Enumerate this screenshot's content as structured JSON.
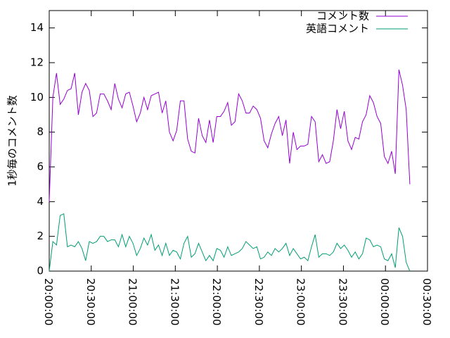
{
  "chart_data": {
    "type": "line",
    "y_label": "1秒毎のコメント数",
    "x": [
      0,
      2.6,
      5.2,
      7.8,
      10.4,
      13,
      15.6,
      18.2,
      20.8,
      23.4,
      26,
      28.6,
      31.2,
      33.8,
      36.4,
      39,
      41.6,
      44.2,
      46.8,
      49.4,
      52,
      54.6,
      57.2,
      59.8,
      62.4,
      65,
      67.6,
      70.2,
      72.8,
      75.4,
      78,
      80.6,
      83.2,
      85.8,
      88.4,
      91,
      93.6,
      96.2,
      98.8,
      101.4,
      104,
      106.6,
      109.2,
      111.8,
      114.4,
      117,
      119.6,
      122.2,
      124.8,
      127.4,
      130,
      132.6,
      135.2,
      137.8,
      140.4,
      143,
      145.6,
      148.2,
      150.8,
      153.4,
      156,
      158.6,
      161.2,
      163.8,
      166.4,
      169,
      171.6,
      174.2,
      176.8,
      179.4,
      182,
      184.6,
      187.2,
      189.8,
      192.4,
      195,
      197.6,
      200.2,
      202.8,
      205.4,
      208,
      210.6,
      213.2,
      215.8,
      218.4,
      221,
      223.6,
      226.2,
      228.8,
      231.4,
      234,
      236.6,
      239.2,
      241.8,
      244.4,
      247,
      249.6,
      252.2,
      254.8,
      257.4
    ],
    "series": [
      {
        "name": "コメント数",
        "color": "#9400d3",
        "values": [
          4,
          10,
          11.4,
          9.6,
          9.9,
          10.4,
          10.5,
          11.4,
          9.0,
          10.3,
          10.8,
          10.4,
          8.9,
          9.1,
          10.2,
          10.2,
          9.8,
          9.3,
          10.8,
          9.9,
          9.4,
          10.2,
          10.3,
          9.5,
          8.6,
          9.1,
          10.0,
          9.3,
          10.1,
          10.2,
          10.3,
          9.1,
          9.8,
          8.0,
          7.5,
          8.1,
          9.8,
          9.8,
          7.6,
          6.9,
          6.8,
          8.8,
          7.8,
          7.4,
          8.7,
          7.4,
          8.9,
          8.9,
          9.2,
          9.7,
          8.4,
          8.6,
          10.2,
          9.8,
          9.1,
          9.1,
          9.5,
          9.3,
          8.8,
          7.5,
          7.1,
          7.9,
          8.5,
          8.9,
          7.8,
          8.7,
          6.2,
          8.0,
          7.0,
          7.2,
          7.2,
          7.3,
          8.9,
          8.6,
          6.3,
          6.7,
          6.2,
          6.3,
          7.5,
          9.3,
          8.2,
          9.2,
          7.5,
          7.0,
          7.7,
          7.6,
          8.6,
          9.0,
          10.1,
          9.7,
          8.9,
          8.5,
          6.6,
          6.2,
          6.9,
          5.6,
          11.6,
          10.7,
          9.3,
          5.0
        ]
      },
      {
        "name": "英語コメント",
        "color": "#009e73",
        "values": [
          0,
          1.7,
          1.5,
          3.2,
          3.3,
          1.4,
          1.5,
          1.4,
          1.7,
          1.3,
          0.6,
          1.7,
          1.6,
          1.7,
          2.0,
          2.0,
          1.7,
          1.8,
          1.8,
          1.4,
          2.1,
          1.4,
          2.0,
          1.6,
          0.9,
          1.3,
          1.9,
          1.5,
          2.1,
          1.2,
          1.5,
          0.9,
          1.6,
          0.9,
          1.2,
          1.1,
          0.7,
          1.6,
          2.0,
          0.8,
          1.0,
          1.6,
          1.1,
          0.6,
          0.9,
          0.6,
          1.3,
          1.2,
          0.8,
          1.4,
          0.9,
          1.0,
          1.1,
          1.3,
          1.7,
          1.5,
          1.3,
          1.4,
          0.7,
          0.8,
          1.1,
          0.9,
          1.3,
          1.1,
          1.3,
          1.6,
          0.9,
          1.3,
          1.0,
          0.7,
          0.8,
          0.6,
          1.4,
          2.1,
          0.8,
          1.0,
          1.0,
          0.9,
          1.1,
          1.6,
          1.3,
          1.5,
          1.2,
          0.8,
          1.1,
          0.7,
          1.0,
          1.9,
          1.8,
          1.4,
          1.5,
          1.4,
          0.7,
          0.6,
          1.0,
          0.2,
          2.5,
          2.0,
          0.5,
          0.0
        ]
      }
    ],
    "xlim": [
      0,
      270
    ],
    "xticks": [
      {
        "value": 0,
        "label": "20:00:00"
      },
      {
        "value": 30,
        "label": "20:30:00"
      },
      {
        "value": 60,
        "label": "21:00:00"
      },
      {
        "value": 90,
        "label": "21:30:00"
      },
      {
        "value": 120,
        "label": "22:00:00"
      },
      {
        "value": 150,
        "label": "22:30:00"
      },
      {
        "value": 180,
        "label": "23:00:00"
      },
      {
        "value": 210,
        "label": "23:30:00"
      },
      {
        "value": 240,
        "label": "00:00:00"
      },
      {
        "value": 270,
        "label": "00:30:00"
      }
    ],
    "ylim": [
      0,
      15
    ],
    "yticks": [
      0,
      2,
      4,
      6,
      8,
      10,
      12,
      14
    ],
    "legend": "top-right"
  }
}
